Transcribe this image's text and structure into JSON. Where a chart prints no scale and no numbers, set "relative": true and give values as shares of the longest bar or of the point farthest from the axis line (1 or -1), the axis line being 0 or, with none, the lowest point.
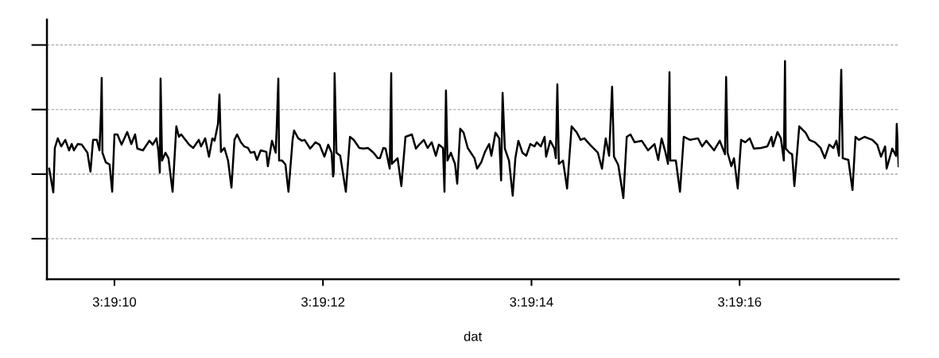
{
  "chart_data": {
    "type": "line",
    "xlabel": "dat",
    "relative": true,
    "grid": "y",
    "tick_labels": "x",
    "marker": "none",
    "line_style": "solid",
    "legend": false,
    "xlim": [
      3.319264,
      3.321535
    ],
    "xticks": [
      {
        "value": 3.319444,
        "label": "3:19:10"
      },
      {
        "value": 3.32,
        "label": "3:19:12"
      },
      {
        "value": 3.320556,
        "label": "3:19:14"
      },
      {
        "value": 3.321111,
        "label": "3:19:16"
      }
    ],
    "series": [
      {
        "color": "#000000",
        "x": [
          3.31927,
          3.319281,
          3.319285,
          3.319293,
          3.319302,
          3.319313,
          3.319323,
          3.31933,
          3.319336,
          3.319346,
          3.319357,
          3.319372,
          3.31938,
          3.319387,
          3.319397,
          3.319404,
          3.319408,
          3.31941,
          3.319412,
          3.319421,
          3.319431,
          3.319438,
          3.319444,
          3.319452,
          3.319463,
          3.319478,
          3.319489,
          3.319499,
          3.319505,
          3.31952,
          3.319537,
          3.319546,
          3.319556,
          3.319561,
          3.319565,
          3.319567,
          3.319571,
          3.31958,
          3.319588,
          3.319599,
          3.319609,
          3.319616,
          3.319622,
          3.319643,
          3.319654,
          3.319669,
          3.319675,
          3.319686,
          3.319696,
          3.319705,
          3.319711,
          3.31972,
          3.319724,
          3.319728,
          3.319737,
          3.319747,
          3.319756,
          3.319764,
          3.319771,
          3.319781,
          3.31979,
          3.3198,
          3.319807,
          3.319817,
          3.319824,
          3.319834,
          3.319849,
          3.319853,
          3.319864,
          3.319874,
          3.319877,
          3.319881,
          3.319883,
          3.319891,
          3.3199,
          3.319908,
          3.319919,
          3.319923,
          3.319934,
          3.319944,
          3.319951,
          3.319966,
          3.31998,
          3.319991,
          3.320004,
          3.320014,
          3.320023,
          3.320027,
          3.320029,
          3.320031,
          3.320036,
          3.320046,
          3.320061,
          3.320072,
          3.320082,
          3.320097,
          3.320108,
          3.32012,
          3.320135,
          3.320146,
          3.320152,
          3.320161,
          3.320167,
          3.320178,
          3.320182,
          3.320184,
          3.320199,
          3.320209,
          3.32022,
          3.320237,
          3.320248,
          3.320258,
          3.320269,
          3.320279,
          3.32029,
          3.320301,
          3.320309,
          3.32032,
          3.320324,
          3.320328,
          3.320332,
          3.320341,
          3.320352,
          3.320358,
          3.320366,
          3.320375,
          3.320386,
          3.320404,
          3.320411,
          3.320422,
          3.320432,
          3.320443,
          3.320449,
          3.32046,
          3.32047,
          3.320475,
          3.320479,
          3.320485,
          3.320496,
          3.320506,
          3.320513,
          3.320521,
          3.320532,
          3.320542,
          3.320553,
          3.320564,
          3.32057,
          3.320581,
          3.320591,
          3.320595,
          3.320606,
          3.320617,
          3.320621,
          3.320625,
          3.320629,
          3.32064,
          3.320651,
          3.320663,
          3.320676,
          3.320687,
          3.320697,
          3.320712,
          3.320733,
          3.320744,
          3.320754,
          3.320763,
          3.320771,
          3.320776,
          3.320786,
          3.320788,
          3.320801,
          3.32081,
          3.32082,
          3.320831,
          3.32085,
          3.320867,
          3.320884,
          3.320894,
          3.320903,
          3.320913,
          3.32092,
          3.320924,
          3.320926,
          3.320941,
          3.320952,
          3.320962,
          3.320979,
          3.321,
          3.321011,
          3.321022,
          3.321043,
          3.321058,
          3.321072,
          3.321075,
          3.321079,
          3.321089,
          3.321096,
          3.321106,
          3.321115,
          3.321126,
          3.321138,
          3.321149,
          3.321168,
          3.321185,
          3.321196,
          3.3212,
          3.321212,
          3.321221,
          3.321229,
          3.321232,
          3.321234,
          3.321244,
          3.321251,
          3.321257,
          3.32127,
          3.321287,
          3.321297,
          3.321312,
          3.321327,
          3.321338,
          3.32135,
          3.321361,
          3.321369,
          3.321376,
          3.321382,
          3.321386,
          3.321401,
          3.321412,
          3.32142,
          3.321429,
          3.321444,
          3.321465,
          3.321478,
          3.321488,
          3.321499,
          3.321503,
          3.321518,
          3.321528,
          3.32153,
          3.321535
        ],
        "values": [
          0.507,
          0.398,
          0.602,
          0.646,
          0.609,
          0.639,
          0.591,
          0.62,
          0.591,
          0.62,
          0.617,
          0.58,
          0.493,
          0.639,
          0.639,
          0.591,
          0.763,
          0.923,
          0.58,
          0.536,
          0.526,
          0.401,
          0.664,
          0.664,
          0.617,
          0.675,
          0.62,
          0.664,
          0.599,
          0.591,
          0.635,
          0.617,
          0.646,
          0.591,
          0.489,
          0.92,
          0.544,
          0.58,
          0.555,
          0.401,
          0.701,
          0.653,
          0.664,
          0.617,
          0.602,
          0.639,
          0.609,
          0.646,
          0.562,
          0.646,
          0.635,
          0.712,
          0.847,
          0.584,
          0.602,
          0.544,
          0.42,
          0.639,
          0.664,
          0.628,
          0.609,
          0.602,
          0.58,
          0.584,
          0.547,
          0.591,
          0.584,
          0.518,
          0.635,
          0.58,
          0.712,
          0.92,
          0.544,
          0.544,
          0.526,
          0.401,
          0.639,
          0.682,
          0.646,
          0.635,
          0.639,
          0.599,
          0.628,
          0.617,
          0.562,
          0.617,
          0.58,
          0.471,
          0.493,
          0.945,
          0.58,
          0.566,
          0.401,
          0.653,
          0.639,
          0.602,
          0.599,
          0.602,
          0.58,
          0.555,
          0.555,
          0.602,
          0.599,
          0.507,
          0.945,
          0.529,
          0.555,
          0.427,
          0.653,
          0.664,
          0.599,
          0.62,
          0.639,
          0.602,
          0.628,
          0.566,
          0.617,
          0.602,
          0.401,
          0.865,
          0.544,
          0.58,
          0.529,
          0.438,
          0.69,
          0.672,
          0.602,
          0.555,
          0.507,
          0.536,
          0.584,
          0.62,
          0.566,
          0.672,
          0.646,
          0.453,
          0.854,
          0.599,
          0.544,
          0.383,
          0.555,
          0.635,
          0.58,
          0.566,
          0.62,
          0.609,
          0.628,
          0.609,
          0.653,
          0.562,
          0.635,
          0.599,
          0.555,
          0.894,
          0.529,
          0.544,
          0.416,
          0.701,
          0.675,
          0.639,
          0.646,
          0.617,
          0.58,
          0.507,
          0.646,
          0.566,
          0.883,
          0.562,
          0.529,
          0.518,
          0.372,
          0.653,
          0.664,
          0.628,
          0.635,
          0.591,
          0.62,
          0.547,
          0.646,
          0.584,
          0.529,
          0.949,
          0.544,
          0.544,
          0.401,
          0.653,
          0.639,
          0.646,
          0.609,
          0.635,
          0.591,
          0.635,
          0.573,
          0.927,
          0.58,
          0.518,
          0.555,
          0.416,
          0.639,
          0.628,
          0.646,
          0.599,
          0.602,
          0.609,
          0.653,
          0.609,
          0.675,
          0.646,
          0.544,
          1.0,
          0.599,
          0.58,
          0.573,
          0.427,
          0.701,
          0.672,
          0.639,
          0.628,
          0.602,
          0.555,
          0.617,
          0.602,
          0.635,
          0.566,
          0.96,
          0.555,
          0.547,
          0.409,
          0.653,
          0.639,
          0.653,
          0.639,
          0.617,
          0.562,
          0.609,
          0.507,
          0.599,
          0.566,
          0.712,
          0.518
        ]
      }
    ]
  }
}
